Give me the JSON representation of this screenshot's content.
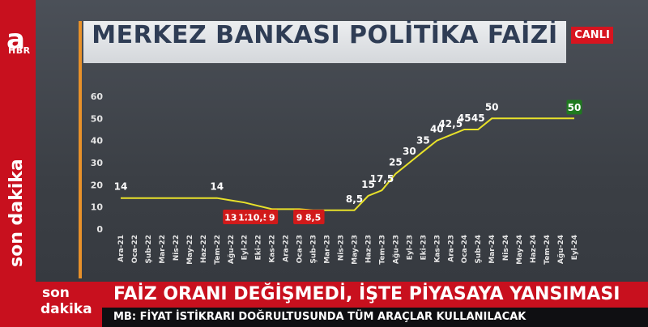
{
  "channel": {
    "logo_letter": "a",
    "logo_sub": "HBR",
    "son_dakika_vertical": "son dakika",
    "live_badge": "CANLI",
    "brand_red": "#c8101e",
    "accent_orange": "#e8912a"
  },
  "title": "MERKEZ BANKASI POLİTİKA FAİZİ",
  "chart_data": {
    "type": "line",
    "title": "MERKEZ BANKASI POLİTİKA FAİZİ",
    "xlabel": "",
    "ylabel": "",
    "ylim": [
      0,
      60
    ],
    "yticks": [
      0,
      10,
      20,
      30,
      40,
      50,
      60
    ],
    "grid": false,
    "line_color": "#e9e22a",
    "categories": [
      "Ara-21",
      "Oca-22",
      "Şub-22",
      "Mar-22",
      "Nis-22",
      "May-22",
      "Haz-22",
      "Tem-22",
      "Ağu-22",
      "Eyl-22",
      "Eki-22",
      "Kas-22",
      "Ara-22",
      "Oca-23",
      "Şub-23",
      "Mar-23",
      "Nis-23",
      "May-23",
      "Haz-23",
      "Tem-23",
      "Ağu-23",
      "Eyl-23",
      "Eki-23",
      "Kas-23",
      "Ara-23",
      "Oca-24",
      "Şub-24",
      "Mar-24",
      "Nis-24",
      "May-24",
      "Haz-24",
      "Tem-24",
      "Ağu-24",
      "Eyl-24"
    ],
    "values": [
      14,
      14,
      14,
      14,
      14,
      14,
      14,
      14,
      13,
      12,
      10.5,
      9,
      9,
      9,
      8.5,
      8.5,
      8.5,
      8.5,
      15,
      17.5,
      25,
      30,
      35,
      40,
      42.5,
      45,
      45,
      50,
      50,
      50,
      50,
      50,
      50,
      50
    ],
    "labels": [
      {
        "index": 0,
        "text": "14",
        "style": "plain"
      },
      {
        "index": 7,
        "text": "14",
        "style": "plain"
      },
      {
        "index": 8,
        "text": "13",
        "style": "red"
      },
      {
        "index": 9,
        "text": "12",
        "style": "red"
      },
      {
        "index": 10,
        "text": "10,5",
        "style": "red"
      },
      {
        "index": 11,
        "text": "9",
        "style": "red"
      },
      {
        "index": 13,
        "text": "9",
        "style": "red"
      },
      {
        "index": 14,
        "text": "8,5",
        "style": "red"
      },
      {
        "index": 17,
        "text": "8,5",
        "style": "plain"
      },
      {
        "index": 18,
        "text": "15",
        "style": "plain"
      },
      {
        "index": 19,
        "text": "17,5",
        "style": "plain"
      },
      {
        "index": 20,
        "text": "25",
        "style": "plain"
      },
      {
        "index": 21,
        "text": "30",
        "style": "plain"
      },
      {
        "index": 22,
        "text": "35",
        "style": "plain"
      },
      {
        "index": 23,
        "text": "40",
        "style": "plain"
      },
      {
        "index": 24,
        "text": "42,5",
        "style": "plain"
      },
      {
        "index": 25,
        "text": "45",
        "style": "plain"
      },
      {
        "index": 26,
        "text": "45",
        "style": "plain"
      },
      {
        "index": 27,
        "text": "50",
        "style": "plain"
      },
      {
        "index": 33,
        "text": "50",
        "style": "green"
      }
    ],
    "label_colors": {
      "red": "#d11a1a",
      "green": "#1f7a1f"
    }
  },
  "ticker": {
    "son": "son",
    "dakika": "dakika",
    "headline": "FAİZ ORANI DEĞİŞMEDİ, İŞTE PİYASAYA YANSIMASI",
    "subline": "MB: FİYAT İSTİKRARI DOĞRULTUSUNDA TÜM ARAÇLAR KULLANILACAK"
  }
}
